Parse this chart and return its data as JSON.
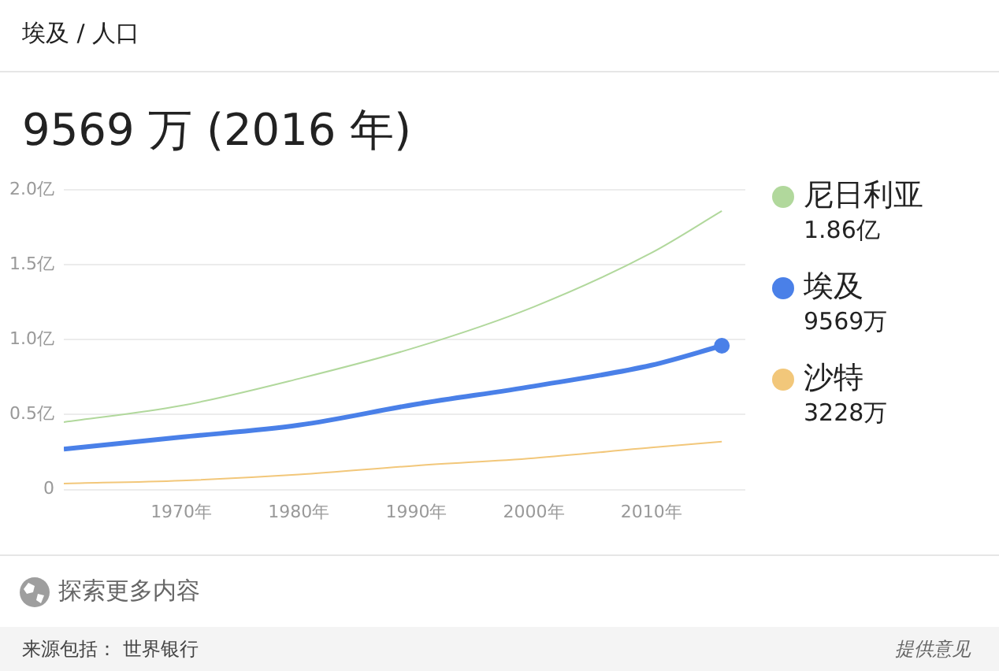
{
  "chart_data": {
    "type": "line",
    "subtitle": "埃及 / 人口",
    "title": "9569 万 (2016 年)",
    "x": [
      1960,
      1970,
      1980,
      1990,
      2000,
      2010,
      2016
    ],
    "series": [
      {
        "name": "尼日利亚",
        "color": "#b1d89c",
        "values": [
          0.45,
          0.56,
          0.74,
          0.95,
          1.22,
          1.58,
          1.86
        ]
      },
      {
        "name": "埃及",
        "color": "#4a80e8",
        "values": [
          0.27,
          0.35,
          0.43,
          0.57,
          0.69,
          0.83,
          0.96
        ]
      },
      {
        "name": "沙特",
        "color": "#f2c77a",
        "values": [
          0.04,
          0.06,
          0.1,
          0.16,
          0.21,
          0.28,
          0.32
        ]
      },
      {
        "type": "scatter",
        "color": "#4a80e8",
        "x": [
          2016
        ],
        "values": [
          0.96
        ]
      }
    ],
    "xlim": [
      1960,
      2018
    ],
    "xticks": [
      {
        "value": 1970,
        "label": "1970年"
      },
      {
        "value": 1980,
        "label": "1980年"
      },
      {
        "value": 1990,
        "label": "1990年"
      },
      {
        "value": 2000,
        "label": "2000年"
      },
      {
        "value": 2010,
        "label": "2010年"
      }
    ],
    "ylim": [
      0,
      2
    ],
    "yticks": [
      {
        "value": 0,
        "label": "0"
      },
      {
        "value": 0.5,
        "label": "0.5亿"
      },
      {
        "value": 1,
        "label": "1.0亿"
      },
      {
        "value": 1.5,
        "label": "1.5亿"
      },
      {
        "value": 2,
        "label": "2.0亿"
      }
    ],
    "grid": "y",
    "legend": "right",
    "annotations": [
      "1.86亿",
      "9569万",
      "3228万",
      "探索更多内容",
      "来源包括： 世界银行",
      "提供意见"
    ]
  }
}
